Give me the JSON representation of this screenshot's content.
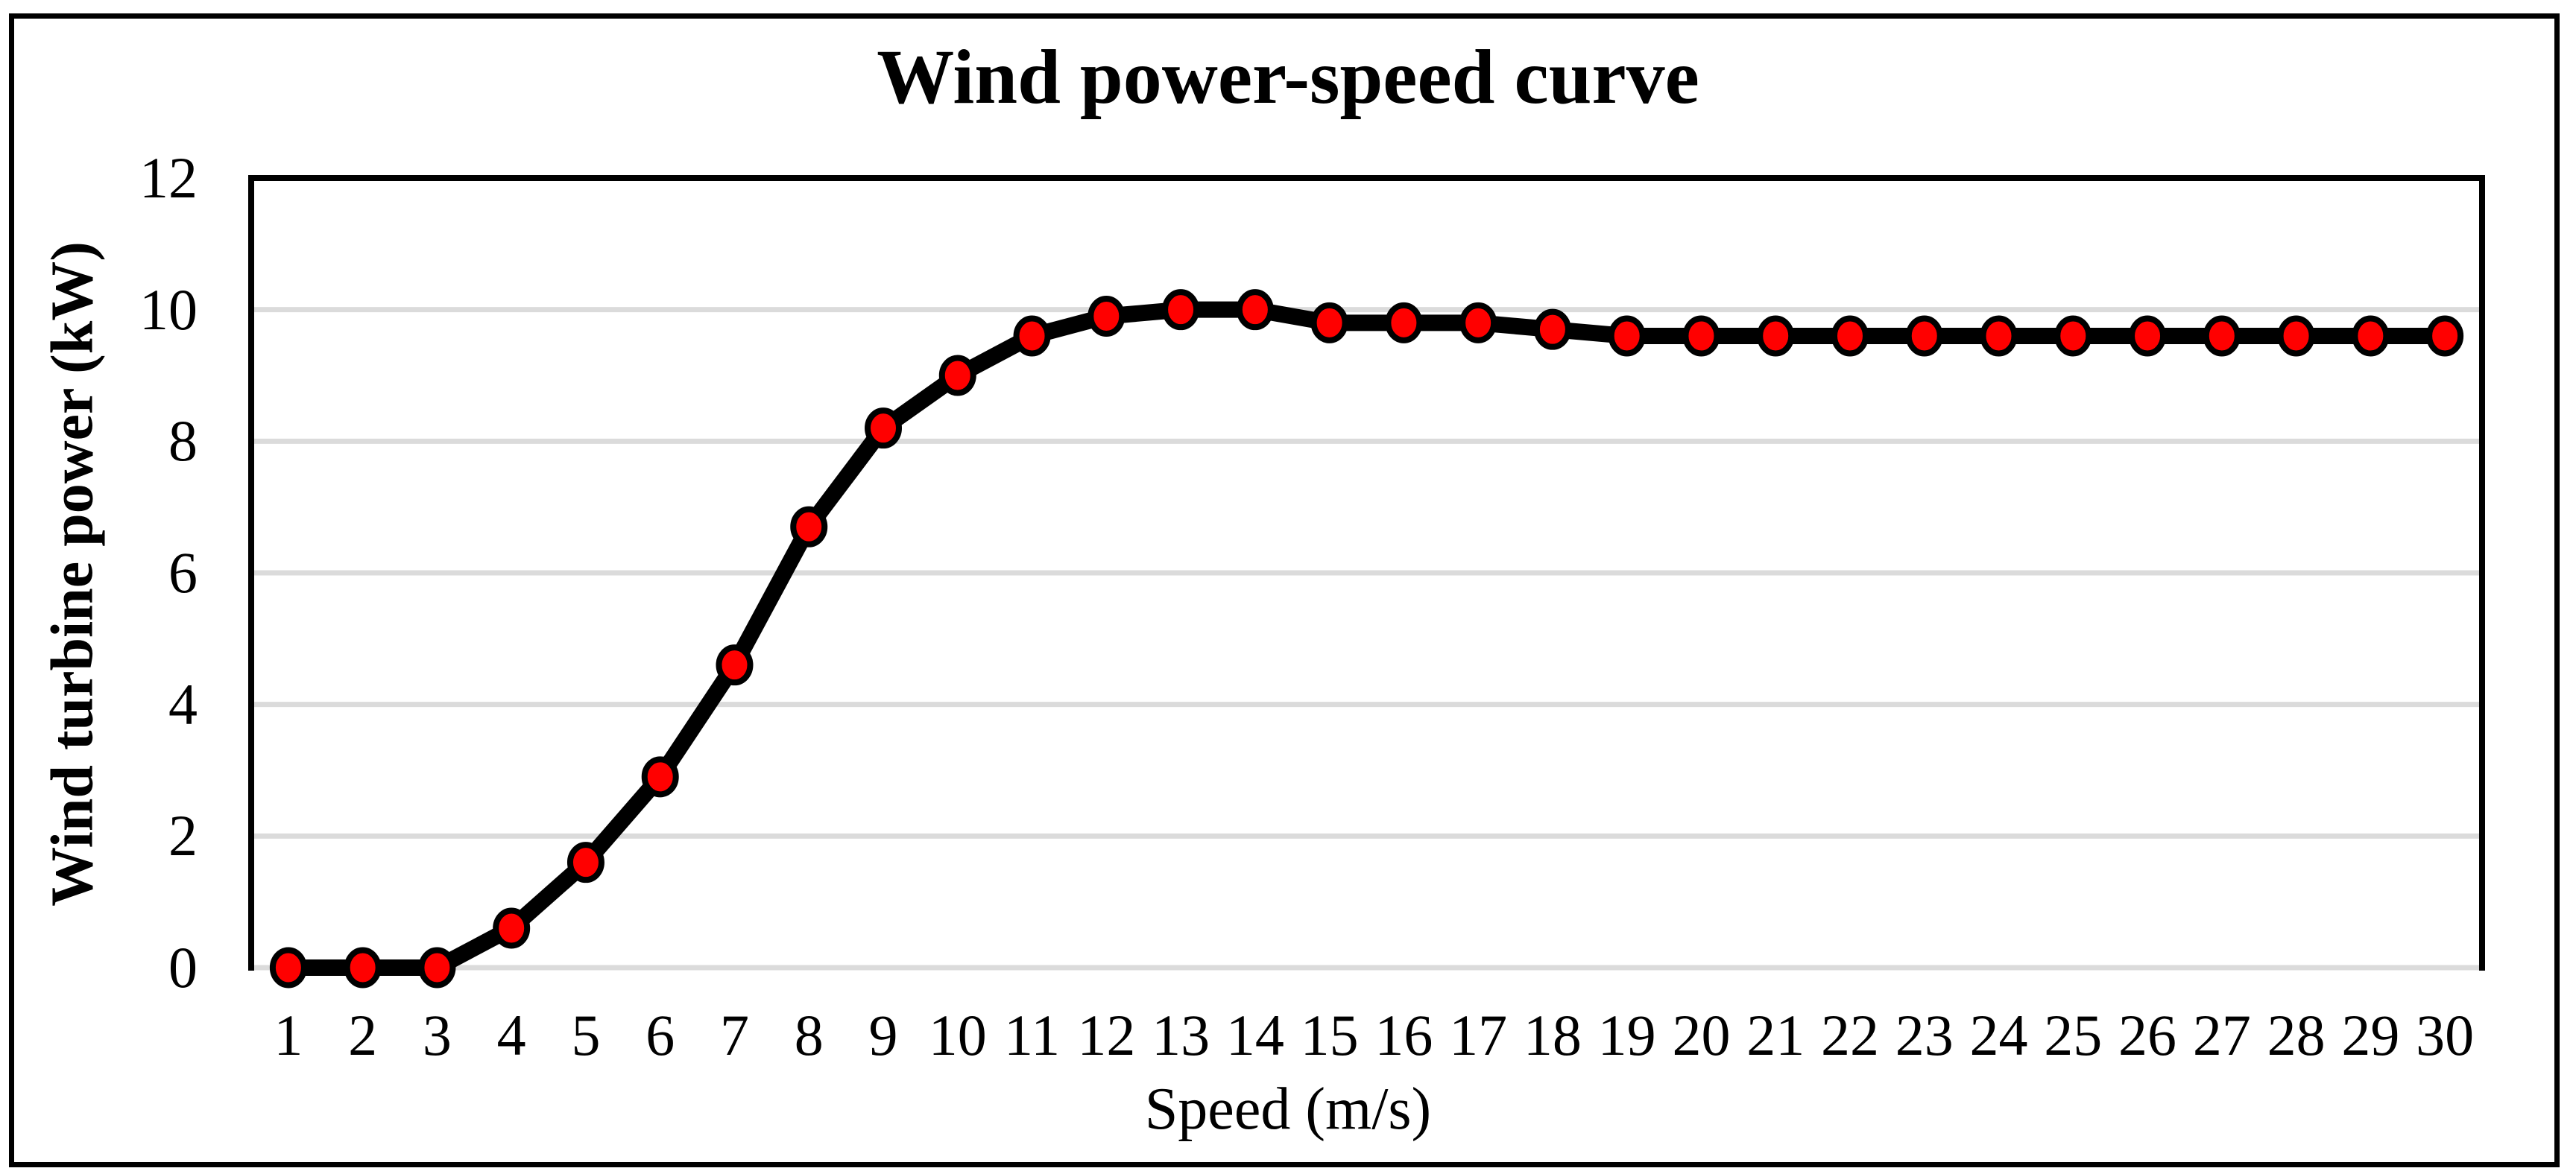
{
  "figure": {
    "title": "Wind power-speed curve"
  },
  "chart_data": {
    "type": "line",
    "title": "Wind power-speed curve",
    "xlabel": "Speed (m/s)",
    "ylabel": "Wind turbine power (kW)",
    "x": [
      1,
      2,
      3,
      4,
      5,
      6,
      7,
      8,
      9,
      10,
      11,
      12,
      13,
      14,
      15,
      16,
      17,
      18,
      19,
      20,
      21,
      22,
      23,
      24,
      25,
      26,
      27,
      28,
      29,
      30
    ],
    "series": [
      {
        "name": "Wind turbine power",
        "values": [
          0,
          0,
          0,
          0.6,
          1.6,
          2.9,
          4.6,
          6.7,
          8.2,
          9.0,
          9.6,
          9.9,
          10.0,
          10.0,
          9.8,
          9.8,
          9.8,
          9.7,
          9.6,
          9.6,
          9.6,
          9.6,
          9.6,
          9.6,
          9.6,
          9.6,
          9.6,
          9.6,
          9.6,
          9.6
        ]
      }
    ],
    "ylim": [
      0,
      12
    ],
    "y_ticks": [
      0,
      2,
      4,
      6,
      8,
      10,
      12
    ],
    "grid": true,
    "legend": false,
    "style": {
      "line_color": "#000000",
      "marker_fill": "#FF0000",
      "marker_stroke": "#000000",
      "gridline_color": "#DBDBDB",
      "axis_color": "#000000",
      "background": "#FFFFFF"
    }
  }
}
